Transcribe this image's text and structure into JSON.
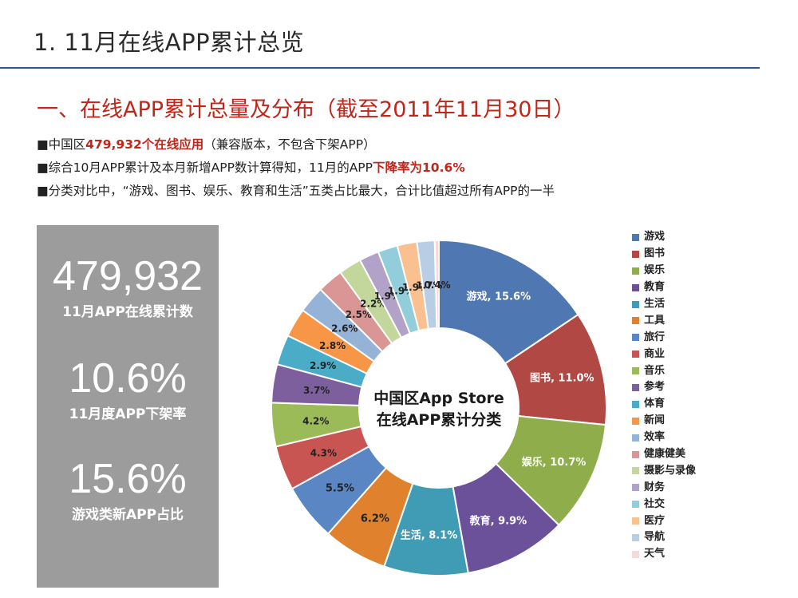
{
  "header": {
    "title": "1. 11月在线APP累计总览"
  },
  "section": {
    "title": "一、在线APP累计总量及分布（截至2011年11月30日）"
  },
  "bullets": [
    {
      "mark": "■",
      "pre": "中国区",
      "hl": "479,932个在线应用",
      "post": "（兼容版本，不包含下架APP）"
    },
    {
      "mark": "■",
      "pre": "综合10月APP累计及本月新增APP数计算得知，11月的APP",
      "hl": "下降率为10.6%",
      "post": ""
    },
    {
      "mark": "■",
      "pre": "分类对比中，“游戏、图书、娱乐、教育和生活”五类占比最大，合计比值超过所有APP的一半",
      "hl": "",
      "post": ""
    }
  ],
  "stats": [
    {
      "value": "479,932",
      "label": "11月APP在线累计数"
    },
    {
      "value": "10.6%",
      "label": "11月度APP下架率"
    },
    {
      "value": "15.6%",
      "label": "游戏类新APP占比"
    }
  ],
  "chart_data": {
    "type": "pie",
    "subtype": "donut",
    "title": "中国区App Store\n在线APP累计分类",
    "title_lines": [
      "中国区App Store",
      "在线APP累计分类"
    ],
    "legend_position": "right",
    "categories": [
      "游戏",
      "图书",
      "娱乐",
      "教育",
      "生活",
      "工具",
      "旅行",
      "商业",
      "音乐",
      "参考",
      "体育",
      "新闻",
      "效率",
      "健康健美",
      "摄影与录像",
      "财务",
      "社交",
      "医疗",
      "导航",
      "天气"
    ],
    "values": [
      15.6,
      11.0,
      10.7,
      9.9,
      8.1,
      6.2,
      5.5,
      4.3,
      4.2,
      3.7,
      2.9,
      2.8,
      2.6,
      2.5,
      2.2,
      1.9,
      1.9,
      1.9,
      1.7,
      0.4
    ],
    "labels": [
      "游戏, 15.6%",
      "图书, 11.0%",
      "娱乐, 10.7%",
      "教育, 9.9%",
      "生活, 8.1%",
      "6.2%",
      "5.5%",
      "4.3%",
      "4.2%",
      "3.7%",
      "2.9%",
      "2.8%",
      "2.6%",
      "2.5%",
      "2.2%",
      "1.9%",
      "1.9%",
      "1.9%",
      "1.7%",
      "0.4%"
    ],
    "colors": [
      "#4f78b2",
      "#b24844",
      "#8fad4a",
      "#6b509a",
      "#3f9cb4",
      "#e0812e",
      "#5a86c4",
      "#c85551",
      "#9bbb59",
      "#7e5f9e",
      "#4aacc6",
      "#f79646",
      "#95b3d7",
      "#d99694",
      "#c3d69b",
      "#b2a2c7",
      "#92cddc",
      "#fac08f",
      "#b9cde5",
      "#f2dcdb"
    ],
    "label_dark": [
      false,
      false,
      false,
      false,
      false,
      true,
      true,
      true,
      true,
      true,
      true,
      true,
      true,
      true,
      true,
      true,
      true,
      true,
      true,
      true
    ]
  }
}
